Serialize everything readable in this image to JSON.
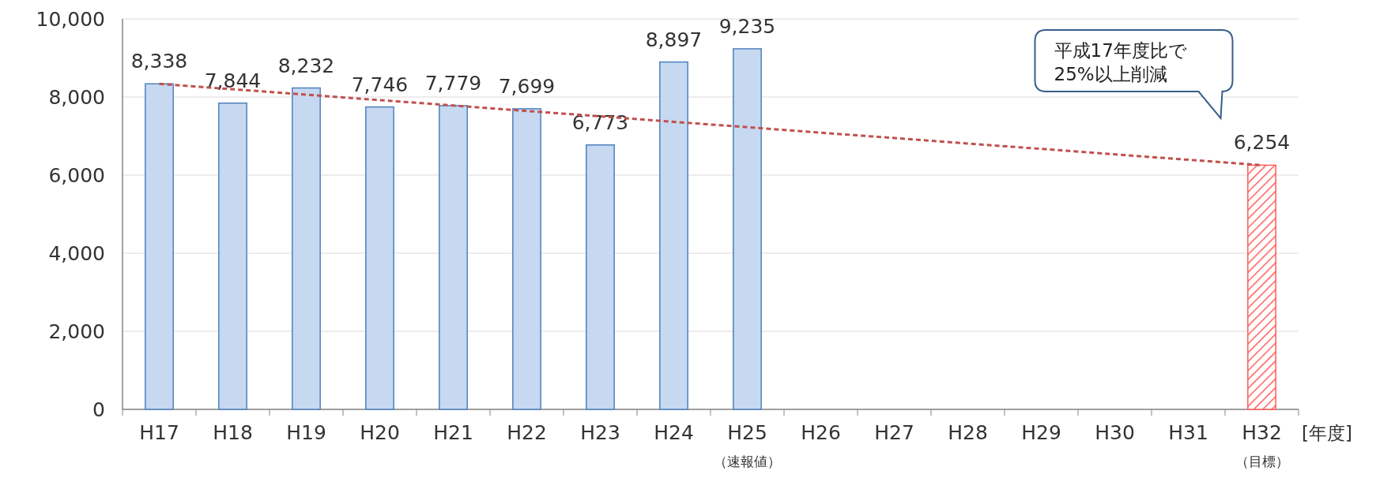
{
  "chart_data": {
    "type": "bar",
    "categories": [
      "H17",
      "H18",
      "H19",
      "H20",
      "H21",
      "H22",
      "H23",
      "H24",
      "H25",
      "H26",
      "H27",
      "H28",
      "H29",
      "H30",
      "H31",
      "H32"
    ],
    "xlabel": "[年度]",
    "ylim": [
      0,
      10000
    ],
    "yticks": [
      0,
      {
        "value": 2000,
        "label": "2,000"
      },
      {
        "value": 4000,
        "label": "4,000"
      },
      {
        "value": 6000,
        "label": "6,000"
      },
      {
        "value": 8000,
        "label": "8,000"
      },
      {
        "value": 10000,
        "label": "10,000"
      }
    ],
    "grid": "y",
    "series": [
      {
        "type": "bar",
        "values": [
          8338,
          7844,
          8232,
          7746,
          7779,
          7699,
          6773,
          8897,
          9235,
          null,
          null,
          null,
          null,
          null,
          null,
          6254
        ],
        "value_labels": [
          "8,338",
          "7,844",
          "8,232",
          "7,746",
          "7,779",
          "7,699",
          "6,773",
          "8,897",
          "9,235",
          null,
          null,
          null,
          null,
          null,
          null,
          "6,254"
        ],
        "colors": [
          "#c6d9f1",
          "#c6d9f1",
          "#c6d9f1",
          "#c6d9f1",
          "#c6d9f1",
          "#c6d9f1",
          "#c6d9f1",
          "#c6d9f1",
          "#c6d9f1",
          null,
          null,
          null,
          null,
          null,
          null,
          "#ff5b5b"
        ]
      },
      {
        "type": "line",
        "x": [
          "H17",
          "H32"
        ],
        "values": [
          8338,
          6254
        ],
        "color": "#c0504d",
        "line_style": "dashed"
      }
    ],
    "annotations": [
      "平成17年度比で\n25%以上削減",
      "（速報値）",
      "（目標）"
    ]
  }
}
